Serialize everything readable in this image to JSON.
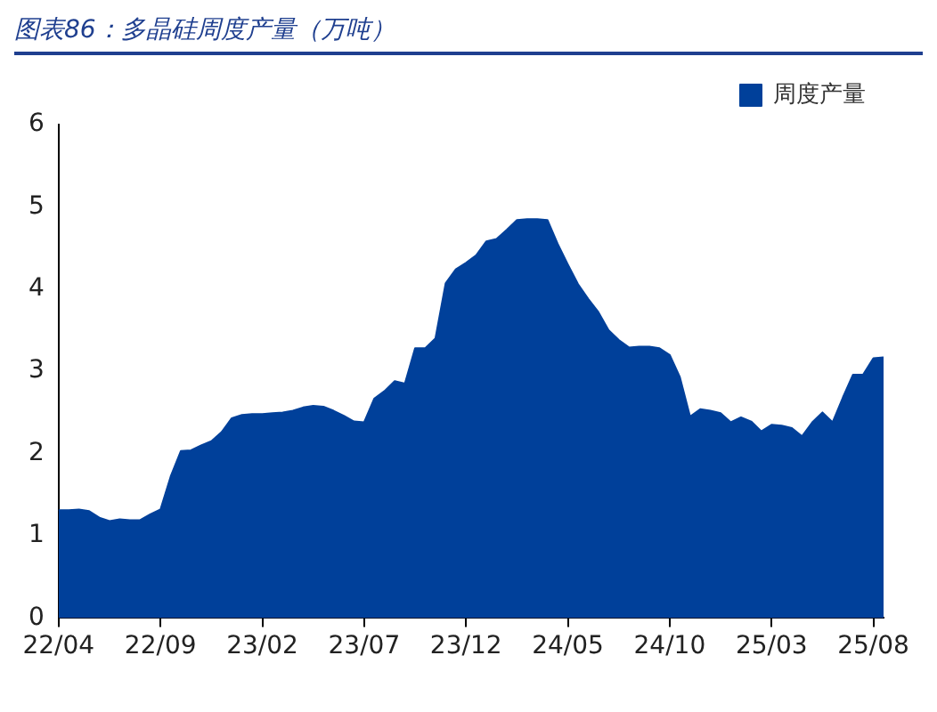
{
  "chart_data": {
    "type": "area",
    "title": "图表86：多晶硅周度产量（万吨）",
    "categories": [
      "22/04",
      null,
      null,
      null,
      null,
      null,
      null,
      null,
      null,
      null,
      "22/09",
      null,
      null,
      null,
      null,
      null,
      null,
      null,
      null,
      null,
      "23/02",
      null,
      null,
      null,
      null,
      null,
      null,
      null,
      null,
      null,
      "23/07",
      null,
      null,
      null,
      null,
      null,
      null,
      null,
      null,
      null,
      "23/12",
      null,
      null,
      null,
      null,
      null,
      null,
      null,
      null,
      null,
      "24/05",
      null,
      null,
      null,
      null,
      null,
      null,
      null,
      null,
      null,
      "24/10",
      null,
      null,
      null,
      null,
      null,
      null,
      null,
      null,
      null,
      "25/03",
      null,
      null,
      null,
      null,
      null,
      null,
      null,
      null,
      null,
      "25/08",
      null
    ],
    "series": [
      {
        "name": "周度产量",
        "color": "#00409a",
        "values": [
          1.31,
          1.31,
          1.32,
          1.3,
          1.22,
          1.18,
          1.2,
          1.19,
          1.19,
          1.26,
          1.32,
          1.72,
          2.03,
          2.04,
          2.1,
          2.15,
          2.26,
          2.43,
          2.47,
          2.48,
          2.48,
          2.49,
          2.5,
          2.52,
          2.56,
          2.58,
          2.57,
          2.52,
          2.46,
          2.39,
          2.38,
          2.67,
          2.76,
          2.88,
          2.85,
          3.28,
          3.28,
          3.4,
          4.07,
          4.24,
          4.32,
          4.41,
          4.58,
          4.61,
          4.72,
          4.84,
          4.85,
          4.85,
          4.84,
          4.55,
          4.3,
          4.06,
          3.88,
          3.72,
          3.5,
          3.38,
          3.29,
          3.3,
          3.3,
          3.28,
          3.2,
          2.93,
          2.45,
          2.54,
          2.52,
          2.49,
          2.38,
          2.44,
          2.39,
          2.27,
          2.35,
          2.34,
          2.31,
          2.21,
          2.38,
          2.5,
          2.38,
          2.68,
          2.96,
          2.96,
          3.16,
          3.17
        ]
      }
    ],
    "ylim": [
      0,
      6
    ],
    "yticks": [
      0,
      1,
      2,
      3,
      4,
      5,
      6
    ],
    "grid": false,
    "legend": "top",
    "marker": "none"
  }
}
